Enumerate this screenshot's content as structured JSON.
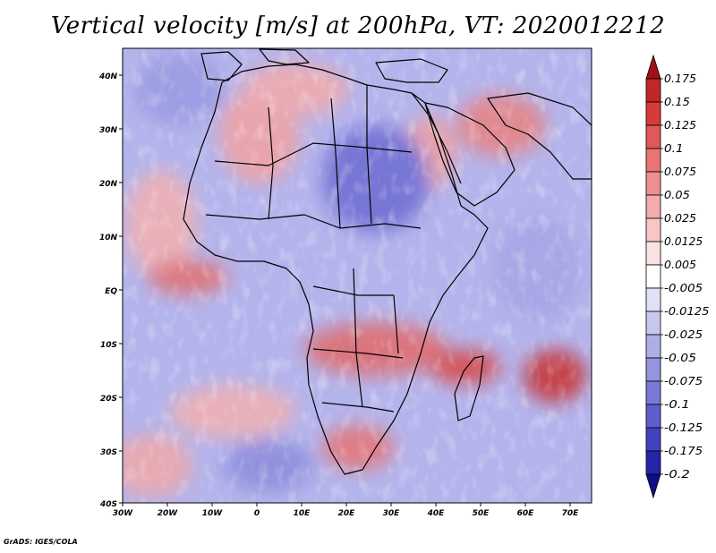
{
  "title": "Vertical velocity [m/s] at 200hPa, VT: 2020012212",
  "credit": "GrADS: IGES/COLA",
  "map": {
    "lon_ticks": [
      "30W",
      "20W",
      "10W",
      "0",
      "10E",
      "20E",
      "30E",
      "40E",
      "50E",
      "60E",
      "70E"
    ],
    "lat_ticks": [
      "40N",
      "30N",
      "20N",
      "10N",
      "EQ",
      "10S",
      "20S",
      "30S",
      "40S"
    ]
  },
  "colorbar": {
    "labels": [
      "0.175",
      "0.15",
      "0.125",
      "0.1",
      "0.075",
      "0.05",
      "0.025",
      "0.0125",
      "0.005",
      "-0.005",
      "-0.0125",
      "-0.025",
      "-0.05",
      "-0.075",
      "-0.1",
      "-0.125",
      "-0.175",
      "-0.2"
    ],
    "colors": [
      "#a50f15",
      "#c0262a",
      "#d73a3a",
      "#e05858",
      "#e87474",
      "#ef9090",
      "#f4abab",
      "#f8c6c6",
      "#fbe2e2",
      "#ffffff",
      "#e1e1f6",
      "#c8c8ef",
      "#aeaee7",
      "#9494df",
      "#7a7ad6",
      "#5e5ecc",
      "#4242c0",
      "#2525a8",
      "#0e0e8a"
    ]
  }
}
